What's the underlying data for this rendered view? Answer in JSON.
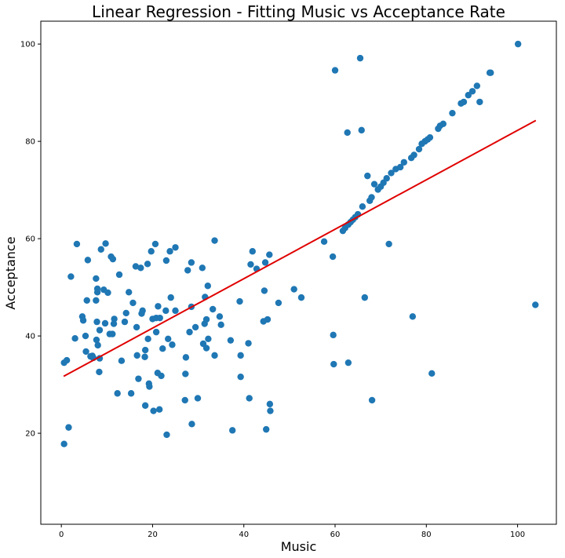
{
  "chart_data": {
    "type": "scatter",
    "title": "Linear Regression - Fitting Music vs Acceptance Rate",
    "xlabel": "Music",
    "ylabel": "Acceptance",
    "xlim": [
      -4.5,
      108.5
    ],
    "ylim": [
      1.3,
      104.7
    ],
    "xticks": [
      0,
      20,
      40,
      60,
      80,
      100
    ],
    "yticks": [
      20,
      40,
      60,
      80,
      100
    ],
    "grid": false,
    "point_color": "#1f77b4",
    "fit_line": {
      "color": "#e00000",
      "x": [
        0.5,
        104
      ],
      "y": [
        31.7,
        84.3
      ]
    },
    "series": [
      {
        "points": [
          [
            0.6,
            34.5
          ],
          [
            1.2,
            35
          ],
          [
            0.6,
            17.8
          ],
          [
            1.6,
            21.2
          ],
          [
            2.1,
            52.2
          ],
          [
            3,
            39.5
          ],
          [
            3.4,
            58.9
          ],
          [
            4.6,
            44
          ],
          [
            4.8,
            43.2
          ],
          [
            5.3,
            40
          ],
          [
            5.4,
            36.8
          ],
          [
            5.6,
            47.3
          ],
          [
            5.8,
            55.6
          ],
          [
            6.4,
            35.8
          ],
          [
            6.8,
            35.9
          ],
          [
            7,
            35.5
          ],
          [
            7.6,
            51.8
          ],
          [
            7.6,
            47.3
          ],
          [
            7.9,
            49.7
          ],
          [
            7.9,
            49
          ],
          [
            7.8,
            42.9
          ],
          [
            7.7,
            39.2
          ],
          [
            8,
            38.1
          ],
          [
            8.4,
            41.2
          ],
          [
            8.3,
            32.6
          ],
          [
            8.4,
            35.4
          ],
          [
            8.7,
            57.8
          ],
          [
            9.3,
            49.5
          ],
          [
            9.7,
            59
          ],
          [
            9.6,
            42.6
          ],
          [
            10.2,
            48.9
          ],
          [
            10.6,
            40.4
          ],
          [
            10.9,
            56.3
          ],
          [
            11.3,
            55.8
          ],
          [
            11.6,
            43.5
          ],
          [
            11.5,
            42.5
          ],
          [
            11.2,
            40.4
          ],
          [
            12.7,
            52.6
          ],
          [
            12.3,
            28.2
          ],
          [
            13.2,
            34.9
          ],
          [
            13.9,
            42.9
          ],
          [
            14.2,
            44.7
          ],
          [
            14.8,
            49
          ],
          [
            15.3,
            28.2
          ],
          [
            15.7,
            46.8
          ],
          [
            16.3,
            54.3
          ],
          [
            16.5,
            41.8
          ],
          [
            16.6,
            36
          ],
          [
            16.9,
            31.2
          ],
          [
            17.4,
            54
          ],
          [
            17.8,
            45.2
          ],
          [
            17.6,
            44.6
          ],
          [
            18.3,
            35.7
          ],
          [
            18.4,
            37.1
          ],
          [
            18.4,
            25.7
          ],
          [
            18.9,
            54.8
          ],
          [
            19,
            39.4
          ],
          [
            19.2,
            30.2
          ],
          [
            19.3,
            29.6
          ],
          [
            19.7,
            57.4
          ],
          [
            20,
            43.5
          ],
          [
            20.2,
            24.6
          ],
          [
            20.6,
            58.9
          ],
          [
            20.8,
            43.7
          ],
          [
            20.8,
            40.8
          ],
          [
            21.1,
            32.4
          ],
          [
            21.2,
            46.1
          ],
          [
            21.5,
            24.9
          ],
          [
            21.6,
            43.7
          ],
          [
            21.9,
            31.8
          ],
          [
            22.2,
            37.4
          ],
          [
            22.9,
            45.2
          ],
          [
            23,
            55.5
          ],
          [
            23.1,
            19.7
          ],
          [
            23.4,
            39.4
          ],
          [
            23.8,
            57.4
          ],
          [
            24,
            47.9
          ],
          [
            24.3,
            38.2
          ],
          [
            25,
            58.2
          ],
          [
            25,
            45.2
          ],
          [
            27.1,
            26.8
          ],
          [
            27.2,
            32.2
          ],
          [
            27.3,
            35.6
          ],
          [
            27.7,
            53.5
          ],
          [
            28.1,
            40.8
          ],
          [
            28.5,
            55.1
          ],
          [
            28.5,
            46
          ],
          [
            28.6,
            21.9
          ],
          [
            29.4,
            41.8
          ],
          [
            29.9,
            27.2
          ],
          [
            30.9,
            54
          ],
          [
            31.1,
            38.4
          ],
          [
            31.4,
            42.5
          ],
          [
            31.5,
            48
          ],
          [
            31.8,
            43.4
          ],
          [
            31.8,
            37.5
          ],
          [
            32.1,
            50.3
          ],
          [
            32.2,
            39.4
          ],
          [
            33.2,
            45.5
          ],
          [
            33.6,
            36
          ],
          [
            33.6,
            59.6
          ],
          [
            34.7,
            44
          ],
          [
            35,
            42.3
          ],
          [
            37.1,
            39.1
          ],
          [
            37.5,
            20.6
          ],
          [
            39.1,
            47.1
          ],
          [
            39.3,
            36
          ],
          [
            39.3,
            31.6
          ],
          [
            41,
            38.5
          ],
          [
            41.2,
            27.2
          ],
          [
            41.5,
            54.7
          ],
          [
            41.9,
            57.4
          ],
          [
            42.8,
            53.8
          ],
          [
            44.3,
            43
          ],
          [
            44.5,
            49.3
          ],
          [
            44.7,
            55.1
          ],
          [
            44.9,
            20.8
          ],
          [
            45.2,
            43.4
          ],
          [
            45.6,
            56.7
          ],
          [
            45.7,
            26
          ],
          [
            45.8,
            24.6
          ],
          [
            47.6,
            46.8
          ],
          [
            51,
            49.6
          ],
          [
            52.6,
            47.9
          ],
          [
            57.6,
            59.4
          ],
          [
            59.5,
            56.3
          ],
          [
            59.6,
            40.2
          ],
          [
            59.7,
            34.2
          ],
          [
            60,
            94.6
          ],
          [
            62.7,
            81.8
          ],
          [
            62.9,
            34.5
          ],
          [
            65.5,
            97.1
          ],
          [
            65.8,
            82.3
          ],
          [
            61.7,
            61.6
          ],
          [
            62.2,
            62.2
          ],
          [
            62.9,
            62.9
          ],
          [
            63.4,
            63.4
          ],
          [
            63.9,
            63.9
          ],
          [
            64.4,
            64.4
          ],
          [
            65,
            65
          ],
          [
            66,
            66.6
          ],
          [
            66.5,
            47.9
          ],
          [
            67.1,
            72.9
          ],
          [
            67.6,
            67.8
          ],
          [
            68,
            68.5
          ],
          [
            68.1,
            26.8
          ],
          [
            68.6,
            71.2
          ],
          [
            69.4,
            70.1
          ],
          [
            70,
            70.7
          ],
          [
            70.6,
            71.5
          ],
          [
            71.3,
            72.4
          ],
          [
            71.8,
            58.9
          ],
          [
            72.3,
            73.5
          ],
          [
            73.3,
            74.3
          ],
          [
            74.3,
            74.7
          ],
          [
            75.1,
            75.7
          ],
          [
            76.7,
            76.6
          ],
          [
            77,
            44
          ],
          [
            77.3,
            77.2
          ],
          [
            78.4,
            78.4
          ],
          [
            79,
            79.5
          ],
          [
            79.7,
            80
          ],
          [
            80.3,
            80.4
          ],
          [
            80.8,
            80.8
          ],
          [
            81.2,
            32.3
          ],
          [
            82.6,
            82.6
          ],
          [
            83,
            83.2
          ],
          [
            83.7,
            83.6
          ],
          [
            85.7,
            85.8
          ],
          [
            87.6,
            87.8
          ],
          [
            88.2,
            88.1
          ],
          [
            89.2,
            89.5
          ],
          [
            90.1,
            90.3
          ],
          [
            91.1,
            91.4
          ],
          [
            91.7,
            88.1
          ],
          [
            93.9,
            94.1
          ],
          [
            94.1,
            94.1
          ],
          [
            100.1,
            100
          ],
          [
            103.9,
            46.4
          ]
        ]
      }
    ]
  }
}
